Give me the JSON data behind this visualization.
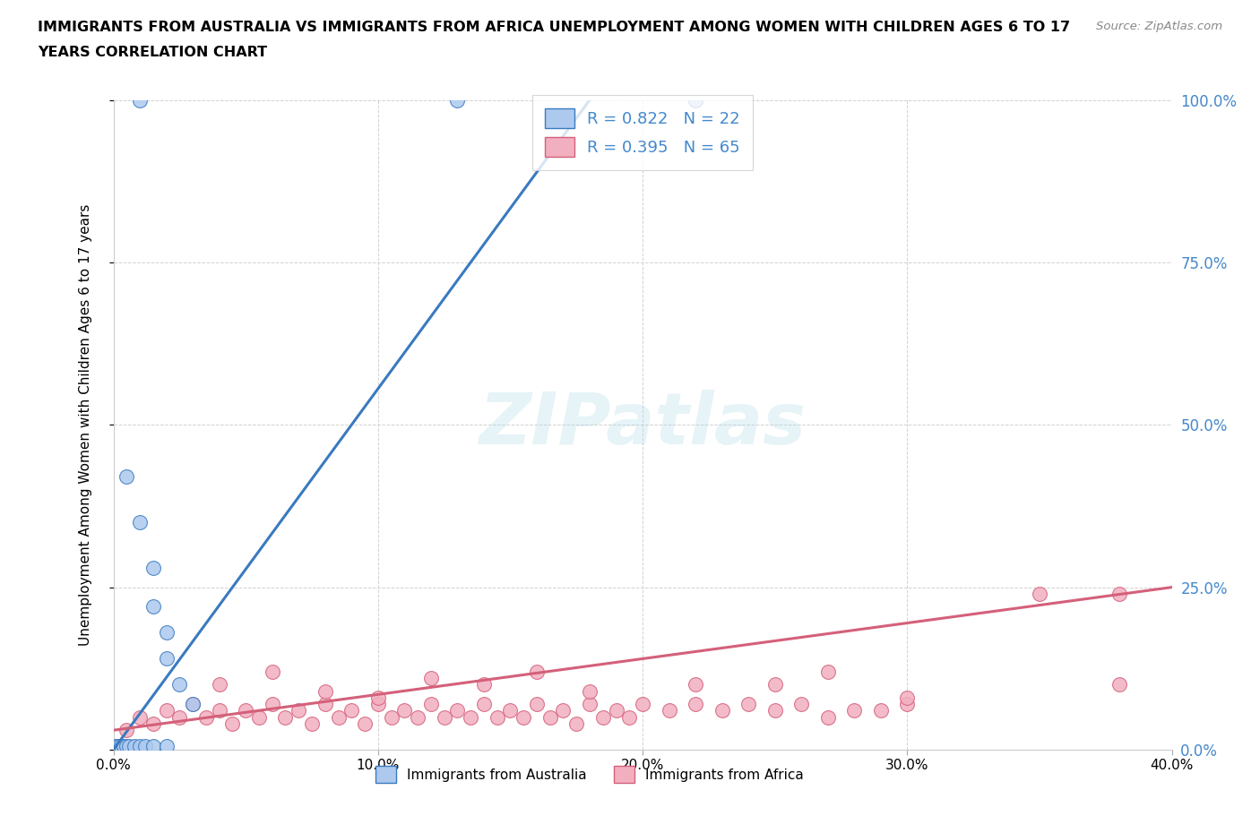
{
  "title_line1": "IMMIGRANTS FROM AUSTRALIA VS IMMIGRANTS FROM AFRICA UNEMPLOYMENT AMONG WOMEN WITH CHILDREN AGES 6 TO 17",
  "title_line2": "YEARS CORRELATION CHART",
  "source": "Source: ZipAtlas.com",
  "ylabel": "Unemployment Among Women with Children Ages 6 to 17 years",
  "legend_label1": "Immigrants from Australia",
  "legend_label2": "Immigrants from Africa",
  "R1": 0.822,
  "N1": 22,
  "R2": 0.395,
  "N2": 65,
  "color1": "#adc9ee",
  "color2": "#f2afc0",
  "line_color1": "#3a7abf",
  "line_color2": "#d4607a",
  "tick_color": "#4488cc",
  "xmin": 0.0,
  "xmax": 0.4,
  "ymin": 0.0,
  "ymax": 1.0,
  "xticks": [
    0.0,
    0.1,
    0.2,
    0.3,
    0.4
  ],
  "xtick_labels": [
    "0.0%",
    "10.0%",
    "20.0%",
    "30.0%",
    "40.0%"
  ],
  "yticks": [
    0.0,
    0.25,
    0.5,
    0.75,
    1.0
  ],
  "ytick_labels": [
    "0.0%",
    "25.0%",
    "50.0%",
    "75.0%",
    "100.0%"
  ],
  "watermark": "ZIPatlas",
  "australia_x": [
    0.01,
    0.13,
    0.22,
    0.005,
    0.01,
    0.015,
    0.015,
    0.02,
    0.02,
    0.025,
    0.03,
    0.001,
    0.002,
    0.003,
    0.004,
    0.005,
    0.006,
    0.008,
    0.01,
    0.012,
    0.015,
    0.02
  ],
  "australia_y": [
    1.0,
    1.0,
    1.0,
    0.42,
    0.35,
    0.28,
    0.22,
    0.18,
    0.14,
    0.1,
    0.07,
    0.005,
    0.005,
    0.005,
    0.005,
    0.005,
    0.005,
    0.005,
    0.005,
    0.005,
    0.005,
    0.005
  ],
  "africa_x": [
    0.005,
    0.01,
    0.015,
    0.02,
    0.025,
    0.03,
    0.035,
    0.04,
    0.045,
    0.05,
    0.055,
    0.06,
    0.065,
    0.07,
    0.075,
    0.08,
    0.085,
    0.09,
    0.095,
    0.1,
    0.105,
    0.11,
    0.115,
    0.12,
    0.125,
    0.13,
    0.135,
    0.14,
    0.145,
    0.15,
    0.155,
    0.16,
    0.165,
    0.17,
    0.175,
    0.18,
    0.185,
    0.19,
    0.195,
    0.2,
    0.21,
    0.22,
    0.23,
    0.24,
    0.25,
    0.26,
    0.27,
    0.28,
    0.29,
    0.3,
    0.04,
    0.06,
    0.08,
    0.1,
    0.12,
    0.14,
    0.16,
    0.18,
    0.22,
    0.25,
    0.3,
    0.35,
    0.38,
    0.38,
    0.27
  ],
  "africa_y": [
    0.03,
    0.05,
    0.04,
    0.06,
    0.05,
    0.07,
    0.05,
    0.06,
    0.04,
    0.06,
    0.05,
    0.07,
    0.05,
    0.06,
    0.04,
    0.07,
    0.05,
    0.06,
    0.04,
    0.07,
    0.05,
    0.06,
    0.05,
    0.07,
    0.05,
    0.06,
    0.05,
    0.07,
    0.05,
    0.06,
    0.05,
    0.07,
    0.05,
    0.06,
    0.04,
    0.07,
    0.05,
    0.06,
    0.05,
    0.07,
    0.06,
    0.07,
    0.06,
    0.07,
    0.06,
    0.07,
    0.05,
    0.06,
    0.06,
    0.07,
    0.1,
    0.12,
    0.09,
    0.08,
    0.11,
    0.1,
    0.12,
    0.09,
    0.1,
    0.1,
    0.08,
    0.24,
    0.24,
    0.1,
    0.12
  ],
  "aus_line_x": [
    0.0,
    0.18
  ],
  "aus_line_y": [
    0.0,
    1.0
  ],
  "afr_line_x": [
    0.0,
    0.4
  ],
  "afr_line_y": [
    0.03,
    0.25
  ]
}
